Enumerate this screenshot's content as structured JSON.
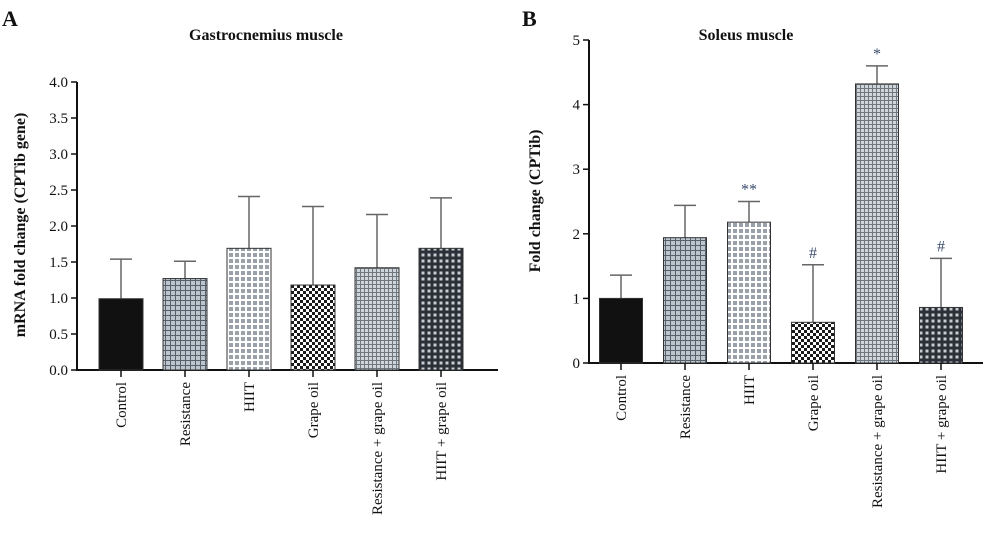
{
  "chart_data": [
    {
      "type": "bar",
      "panel": "A",
      "title": "Gastrocnemius muscle",
      "xlabel": "",
      "ylabel": "mRNA fold change (CPTib gene)",
      "categories": [
        "Control",
        "Resistance",
        "HIIT",
        "Grape oil",
        "Resistance + grape oil",
        "HIIT + grape oil"
      ],
      "values": [
        0.99,
        1.27,
        1.69,
        1.18,
        1.42,
        1.69
      ],
      "error": [
        0.55,
        0.24,
        0.72,
        1.09,
        0.74,
        0.7
      ],
      "yticks": [
        "0.0",
        "0.5",
        "1.0",
        "1.5",
        "2.0",
        "2.5",
        "3.0",
        "3.5",
        "4.0"
      ],
      "ylim": [
        0,
        4
      ],
      "grid": false,
      "annotations": [
        "",
        "",
        "",
        "",
        "",
        ""
      ]
    },
    {
      "type": "bar",
      "panel": "B",
      "title": "Soleus muscle",
      "xlabel": "",
      "ylabel": "Fold change (CPTib)",
      "categories": [
        "Control",
        "Resistance",
        "HIIT",
        "Grape oil",
        "Resistance + grape oil",
        "HIIT + grape oil"
      ],
      "values": [
        1.0,
        1.94,
        2.18,
        0.63,
        4.32,
        0.86
      ],
      "error": [
        0.36,
        0.5,
        0.32,
        0.89,
        0.28,
        0.76
      ],
      "yticks": [
        "0",
        "1",
        "2",
        "3",
        "4",
        "5"
      ],
      "ylim": [
        0,
        5
      ],
      "grid": false,
      "annotations": [
        "",
        "",
        "**",
        "#",
        "*",
        "#"
      ]
    }
  ]
}
